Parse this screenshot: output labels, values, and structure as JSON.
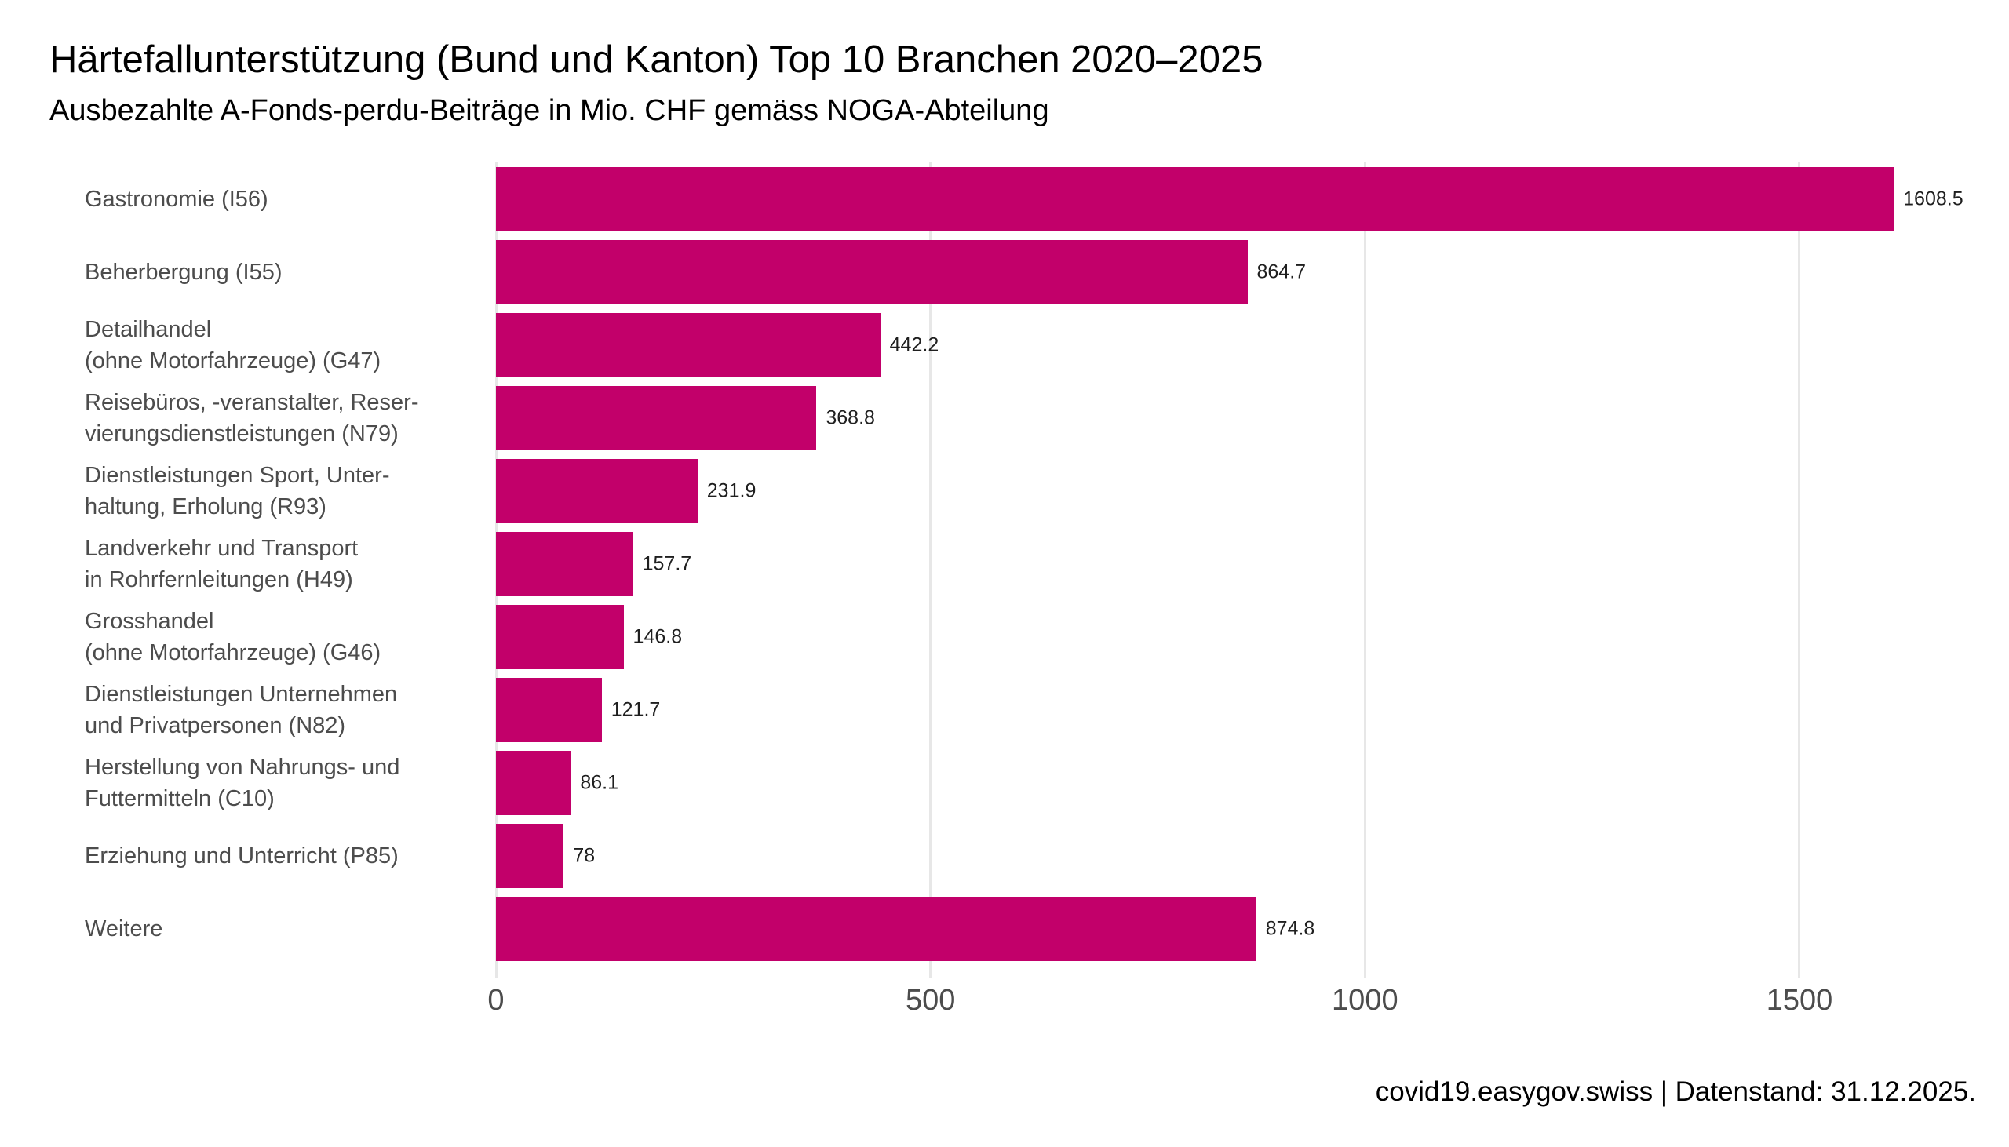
{
  "title": "Härtefallunterstützung (Bund und Kanton) Top 10 Branchen 2020–2025",
  "subtitle": "Ausbezahlte A-Fonds-perdu-Beiträge in Mio. CHF gemäss NOGA-Abteilung",
  "footer": {
    "text": "covid19.easygov.swiss | Datenstand: 31.12.2025."
  },
  "colors": {
    "bar": "#c2006a",
    "gridline": "#e7e7e7",
    "axis_text": "#4c4c4c",
    "value_text": "#1f1f1f",
    "title_text": "#000000",
    "background": "#ffffff"
  },
  "chart_data": {
    "type": "bar",
    "orientation": "horizontal",
    "title": "Härtefallunterstützung (Bund und Kanton) Top 10 Branchen 2020–2025",
    "subtitle": "Ausbezahlte A-Fonds-perdu-Beiträge in Mio. CHF gemäss NOGA-Abteilung",
    "xlabel": "",
    "ylabel": "",
    "unit": "Mio. CHF",
    "xlim": [
      0,
      1705
    ],
    "x_ticks": [
      0,
      500,
      1000,
      1500
    ],
    "grid": "vertical-light",
    "legend": "none",
    "categories": [
      [
        "Gastronomie (I56)"
      ],
      [
        "Beherbergung (I55)"
      ],
      [
        "Detailhandel",
        "(ohne Motorfahrzeuge) (G47)"
      ],
      [
        "Reisebüros, -veranstalter, Reser-",
        "vierungsdienstleistungen (N79)"
      ],
      [
        "Dienstleistungen Sport, Unter-",
        "haltung, Erholung (R93)"
      ],
      [
        "Landverkehr und Transport",
        "in Rohrfernleitungen (H49)"
      ],
      [
        "Grosshandel",
        "(ohne Motorfahrzeuge) (G46)"
      ],
      [
        "Dienstleistungen Unternehmen",
        "und Privatpersonen (N82)"
      ],
      [
        "Herstellung von Nahrungs- und",
        "Futtermitteln (C10)"
      ],
      [
        "Erziehung und Unterricht (P85)"
      ],
      [
        "Weitere"
      ]
    ],
    "values": [
      1608.5,
      864.7,
      442.2,
      368.8,
      231.9,
      157.7,
      146.8,
      121.7,
      86.1,
      78,
      874.8
    ],
    "value_labels": [
      "1608.5",
      "864.7",
      "442.2",
      "368.8",
      "231.9",
      "157.7",
      "146.8",
      "121.7",
      "86.1",
      "78",
      "874.8"
    ]
  }
}
